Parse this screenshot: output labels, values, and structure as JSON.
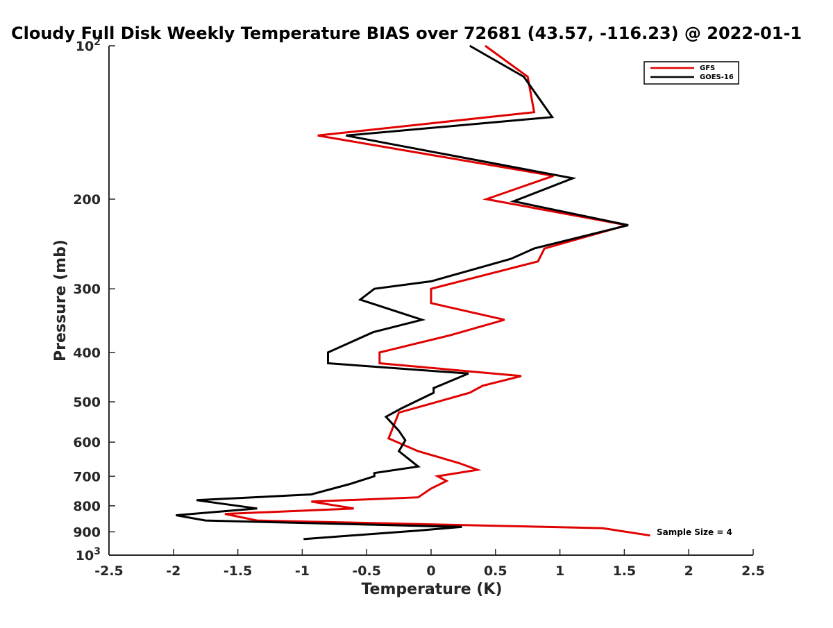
{
  "chart_data": {
    "type": "line",
    "title": "Cloudy Full Disk Weekly Temperature BIAS over 72681 (43.57, -116.23) @ 2022-01-1",
    "xlabel": "Temperature (K)",
    "ylabel": "Pressure (mb)",
    "xlim": [
      -2.5,
      2.5
    ],
    "ylim": [
      100,
      1000
    ],
    "y_scale": "log",
    "y_reversed": true,
    "x_ticks": [
      -2.5,
      -2,
      -1.5,
      -1,
      -0.5,
      0,
      0.5,
      1,
      1.5,
      2,
      2.5
    ],
    "x_tick_labels": [
      "-2.5",
      "-2",
      "-1.5",
      "-1",
      "-0.5",
      "0",
      "0.5",
      "1",
      "1.5",
      "2",
      "2.5"
    ],
    "y_ticks": [
      200,
      300,
      400,
      500,
      600,
      700,
      800,
      900
    ],
    "y_tick_labels": [
      "200",
      "300",
      "400",
      "500",
      "600",
      "700",
      "800",
      "900"
    ],
    "y_end_labels": [
      {
        "value": 100,
        "base": "10",
        "exp": "2"
      },
      {
        "value": 1000,
        "base": "10",
        "exp": "3"
      }
    ],
    "grid": false,
    "legend_position": "top-right",
    "annotation": "Sample Size = 4",
    "series": [
      {
        "name": "GFS",
        "color": "#e00000",
        "points": [
          [
            0.42,
            100
          ],
          [
            0.75,
            115
          ],
          [
            0.8,
            135
          ],
          [
            -0.88,
            150
          ],
          [
            0.95,
            180
          ],
          [
            0.43,
            200
          ],
          [
            1.52,
            225
          ],
          [
            0.88,
            250
          ],
          [
            0.83,
            265
          ],
          [
            0.0,
            300
          ],
          [
            0.0,
            320
          ],
          [
            0.57,
            345
          ],
          [
            0.15,
            370
          ],
          [
            -0.4,
            400
          ],
          [
            -0.4,
            420
          ],
          [
            0.7,
            445
          ],
          [
            0.4,
            465
          ],
          [
            0.3,
            480
          ],
          [
            -0.25,
            525
          ],
          [
            -0.33,
            590
          ],
          [
            -0.1,
            625
          ],
          [
            0.22,
            660
          ],
          [
            0.36,
            680
          ],
          [
            0.05,
            700
          ],
          [
            0.12,
            715
          ],
          [
            0.0,
            740
          ],
          [
            -0.1,
            770
          ],
          [
            -0.93,
            785
          ],
          [
            -0.6,
            810
          ],
          [
            -1.6,
            830
          ],
          [
            -1.35,
            855
          ],
          [
            1.33,
            885
          ],
          [
            1.7,
            915
          ]
        ]
      },
      {
        "name": "GOES-16",
        "color": "#000000",
        "points": [
          [
            0.3,
            100
          ],
          [
            0.72,
            115
          ],
          [
            0.94,
            138
          ],
          [
            -0.66,
            150
          ],
          [
            1.1,
            182
          ],
          [
            0.64,
            202
          ],
          [
            1.53,
            225
          ],
          [
            0.8,
            250
          ],
          [
            0.62,
            262
          ],
          [
            0.0,
            290
          ],
          [
            -0.44,
            300
          ],
          [
            -0.55,
            315
          ],
          [
            -0.07,
            345
          ],
          [
            -0.45,
            365
          ],
          [
            -0.8,
            400
          ],
          [
            -0.8,
            420
          ],
          [
            0.29,
            440
          ],
          [
            0.02,
            470
          ],
          [
            0.02,
            480
          ],
          [
            -0.23,
            515
          ],
          [
            -0.35,
            535
          ],
          [
            -0.25,
            570
          ],
          [
            -0.2,
            595
          ],
          [
            -0.25,
            625
          ],
          [
            -0.1,
            670
          ],
          [
            -0.44,
            690
          ],
          [
            -0.44,
            700
          ],
          [
            -0.63,
            725
          ],
          [
            -0.93,
            760
          ],
          [
            -1.82,
            780
          ],
          [
            -1.35,
            810
          ],
          [
            -1.98,
            835
          ],
          [
            -1.75,
            855
          ],
          [
            0.24,
            880
          ],
          [
            -0.1,
            895
          ],
          [
            -0.99,
            930
          ]
        ]
      }
    ]
  }
}
